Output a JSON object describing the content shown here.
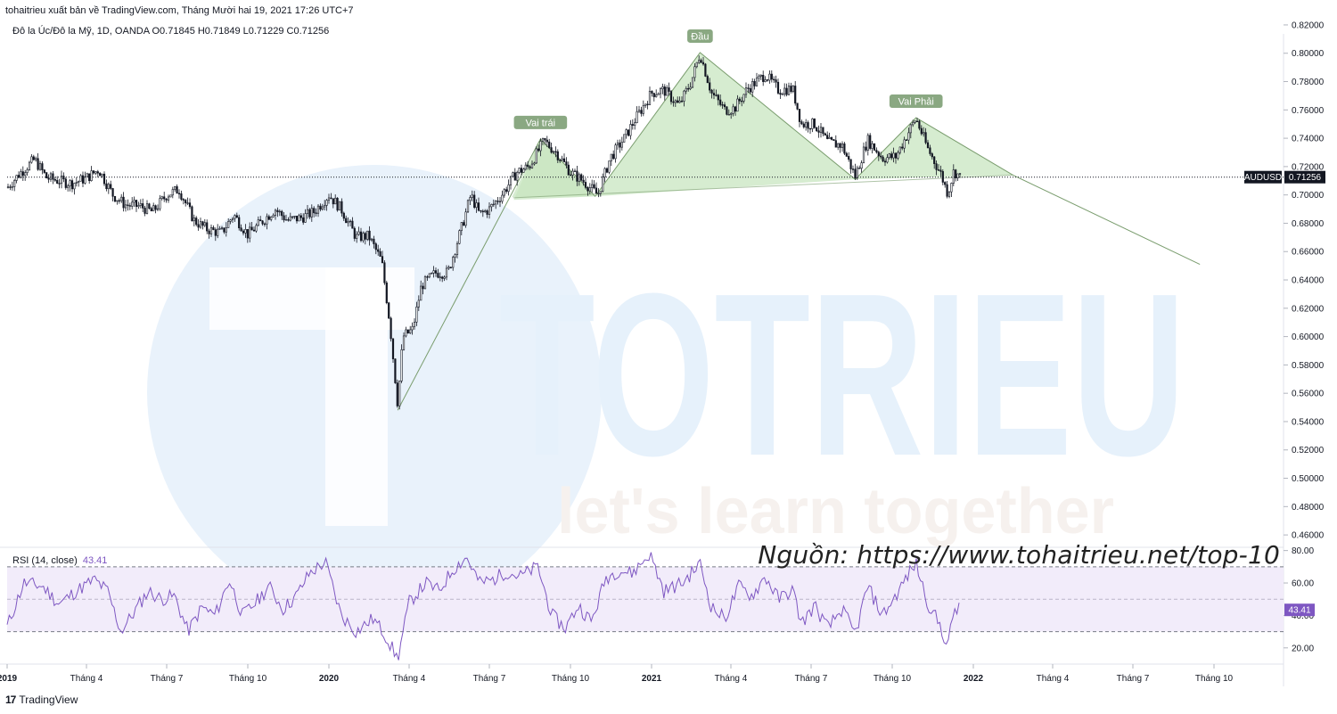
{
  "header": {
    "publisher_line": "tohaitrieu xuất bản về TradingView.com, Tháng Mười hai 19, 2021 17:26 UTC+7",
    "symbol_line": "Đô la Úc/Đô la Mỹ, 1D, OANDA  O0.71845  H0.71849  L0.71229  C0.71256"
  },
  "rsi": {
    "label": "RSI (14, close)",
    "value": "43.41"
  },
  "source_note": "Nguồn: https://www.tohaitrieu.net/top-10",
  "footer": {
    "brand": "TradingView",
    "logo_glyph": "17"
  },
  "watermark": {
    "big": "TOTRIEU",
    "tagline": "let's learn together"
  },
  "colors": {
    "candle": "#131722",
    "pattern_fill": "#c8e6c0",
    "pattern_line": "#7a9d6e",
    "label_bg": "#8aa882",
    "rsi_line": "#7e57c2",
    "rsi_band": "#f2ecfa",
    "price_tag": "#131722",
    "rsi_tag": "#7e57c2",
    "watermark": "#e6f1fb"
  },
  "chart_data": [
    {
      "type": "candlestick",
      "title": "Đô la Úc/Đô la Mỹ, 1D, OANDA",
      "ylim": [
        0.45,
        0.825
      ],
      "y_ticks": [
        "0.82000",
        "0.80000",
        "0.78000",
        "0.76000",
        "0.74000",
        "0.72000",
        "0.70000",
        "0.68000",
        "0.66000",
        "0.64000",
        "0.62000",
        "0.60000",
        "0.58000",
        "0.56000",
        "0.54000",
        "0.52000",
        "0.50000",
        "0.48000",
        "0.46000"
      ],
      "x_ticks": [
        {
          "label": "2019",
          "bold": true
        },
        {
          "label": "Tháng 4",
          "bold": false
        },
        {
          "label": "Tháng 7",
          "bold": false
        },
        {
          "label": "Tháng 10",
          "bold": false
        },
        {
          "label": "2020",
          "bold": true
        },
        {
          "label": "Tháng 4",
          "bold": false
        },
        {
          "label": "Tháng 7",
          "bold": false
        },
        {
          "label": "Tháng 10",
          "bold": false
        },
        {
          "label": "2021",
          "bold": true
        },
        {
          "label": "Tháng 4",
          "bold": false
        },
        {
          "label": "Tháng 7",
          "bold": false
        },
        {
          "label": "Tháng 10",
          "bold": false
        },
        {
          "label": "2022",
          "bold": true
        },
        {
          "label": "Tháng 4",
          "bold": false
        },
        {
          "label": "Tháng 7",
          "bold": false
        },
        {
          "label": "Tháng 10",
          "bold": false
        }
      ],
      "price_path": [
        [
          "2019-01-01",
          0.705
        ],
        [
          "2019-01-15",
          0.715
        ],
        [
          "2019-02-01",
          0.725
        ],
        [
          "2019-02-15",
          0.712
        ],
        [
          "2019-03-01",
          0.71
        ],
        [
          "2019-03-15",
          0.708
        ],
        [
          "2019-04-01",
          0.712
        ],
        [
          "2019-04-15",
          0.718
        ],
        [
          "2019-05-01",
          0.7
        ],
        [
          "2019-05-15",
          0.693
        ],
        [
          "2019-06-01",
          0.692
        ],
        [
          "2019-06-15",
          0.688
        ],
        [
          "2019-07-01",
          0.7
        ],
        [
          "2019-07-15",
          0.704
        ],
        [
          "2019-08-01",
          0.682
        ],
        [
          "2019-08-15",
          0.676
        ],
        [
          "2019-09-01",
          0.673
        ],
        [
          "2019-09-15",
          0.686
        ],
        [
          "2019-10-01",
          0.672
        ],
        [
          "2019-10-15",
          0.68
        ],
        [
          "2019-11-01",
          0.69
        ],
        [
          "2019-11-15",
          0.682
        ],
        [
          "2019-12-01",
          0.684
        ],
        [
          "2019-12-15",
          0.688
        ],
        [
          "2020-01-01",
          0.7
        ],
        [
          "2020-01-15",
          0.69
        ],
        [
          "2020-02-01",
          0.67
        ],
        [
          "2020-02-15",
          0.671
        ],
        [
          "2020-03-01",
          0.653
        ],
        [
          "2020-03-10",
          0.61
        ],
        [
          "2020-03-19",
          0.552
        ],
        [
          "2020-03-25",
          0.6
        ],
        [
          "2020-04-05",
          0.605
        ],
        [
          "2020-04-15",
          0.636
        ],
        [
          "2020-05-01",
          0.645
        ],
        [
          "2020-05-15",
          0.645
        ],
        [
          "2020-06-01",
          0.68
        ],
        [
          "2020-06-10",
          0.7
        ],
        [
          "2020-06-20",
          0.686
        ],
        [
          "2020-07-01",
          0.69
        ],
        [
          "2020-07-15",
          0.7
        ],
        [
          "2020-08-01",
          0.716
        ],
        [
          "2020-08-15",
          0.72
        ],
        [
          "2020-09-01",
          0.738
        ],
        [
          "2020-09-15",
          0.73
        ],
        [
          "2020-10-01",
          0.716
        ],
        [
          "2020-10-15",
          0.71
        ],
        [
          "2020-11-01",
          0.7
        ],
        [
          "2020-11-15",
          0.726
        ],
        [
          "2020-12-01",
          0.74
        ],
        [
          "2020-12-15",
          0.755
        ],
        [
          "2021-01-01",
          0.772
        ],
        [
          "2021-01-15",
          0.774
        ],
        [
          "2021-02-01",
          0.763
        ],
        [
          "2021-02-15",
          0.78
        ],
        [
          "2021-02-25",
          0.8
        ],
        [
          "2021-03-10",
          0.772
        ],
        [
          "2021-03-25",
          0.76
        ],
        [
          "2021-04-05",
          0.761
        ],
        [
          "2021-04-20",
          0.775
        ],
        [
          "2021-05-10",
          0.785
        ],
        [
          "2021-05-25",
          0.774
        ],
        [
          "2021-06-10",
          0.775
        ],
        [
          "2021-06-20",
          0.75
        ],
        [
          "2021-07-05",
          0.75
        ],
        [
          "2021-07-20",
          0.737
        ],
        [
          "2021-08-05",
          0.735
        ],
        [
          "2021-08-20",
          0.713
        ],
        [
          "2021-09-03",
          0.739
        ],
        [
          "2021-09-20",
          0.726
        ],
        [
          "2021-10-05",
          0.727
        ],
        [
          "2021-10-20",
          0.745
        ],
        [
          "2021-10-28",
          0.754
        ],
        [
          "2021-11-10",
          0.733
        ],
        [
          "2021-11-25",
          0.715
        ],
        [
          "2021-12-03",
          0.701
        ],
        [
          "2021-12-10",
          0.717
        ],
        [
          "2021-12-17",
          0.7126
        ]
      ],
      "last_price": {
        "symbol": "AUDUSD",
        "value": "0.71256",
        "y": 0.71256
      },
      "pattern": {
        "name": "Head and Shoulders",
        "labels": [
          {
            "text": "Vai trái",
            "date": "2020-08-28",
            "y": 0.7395
          },
          {
            "text": "Đầu",
            "date": "2021-02-25",
            "y": 0.8005
          },
          {
            "text": "Vai Phải",
            "date": "2021-10-28",
            "y": 0.7545
          }
        ],
        "points": [
          {
            "date": "2020-03-19",
            "y": 0.548
          },
          {
            "date": "2020-08-28",
            "y": 0.7395
          },
          {
            "date": "2020-10-29",
            "y": 0.699
          },
          {
            "date": "2021-02-25",
            "y": 0.8005
          },
          {
            "date": "2021-08-20",
            "y": 0.711
          },
          {
            "date": "2021-10-28",
            "y": 0.7545
          },
          {
            "date": "2022-02-15",
            "y": 0.714
          },
          {
            "date": "2022-09-15",
            "y": 0.651
          }
        ]
      }
    },
    {
      "type": "line",
      "title": "RSI (14, close)",
      "ylim": [
        10,
        82
      ],
      "y_ticks": [
        "80.00",
        "60.00",
        "40.00",
        "20.00"
      ],
      "bands": [
        30,
        50,
        70
      ],
      "last_value": "43.41",
      "series": [
        {
          "values": [
            [
              "2019-01-01",
              33
            ],
            [
              "2019-01-20",
              60
            ],
            [
              "2019-02-10",
              58
            ],
            [
              "2019-03-01",
              47
            ],
            [
              "2019-03-20",
              55
            ],
            [
              "2019-04-10",
              62
            ],
            [
              "2019-04-25",
              55
            ],
            [
              "2019-05-10",
              30
            ],
            [
              "2019-05-25",
              42
            ],
            [
              "2019-06-10",
              55
            ],
            [
              "2019-06-25",
              50
            ],
            [
              "2019-07-10",
              52
            ],
            [
              "2019-07-25",
              30
            ],
            [
              "2019-08-10",
              45
            ],
            [
              "2019-08-25",
              40
            ],
            [
              "2019-09-10",
              62
            ],
            [
              "2019-09-25",
              40
            ],
            [
              "2019-10-10",
              48
            ],
            [
              "2019-10-25",
              58
            ],
            [
              "2019-11-10",
              44
            ],
            [
              "2019-11-25",
              52
            ],
            [
              "2019-12-10",
              66
            ],
            [
              "2019-12-28",
              73
            ],
            [
              "2020-01-15",
              40
            ],
            [
              "2020-02-01",
              30
            ],
            [
              "2020-02-20",
              38
            ],
            [
              "2020-03-05",
              28
            ],
            [
              "2020-03-19",
              13
            ],
            [
              "2020-04-01",
              48
            ],
            [
              "2020-04-20",
              60
            ],
            [
              "2020-05-05",
              55
            ],
            [
              "2020-05-20",
              68
            ],
            [
              "2020-06-05",
              76
            ],
            [
              "2020-06-20",
              60
            ],
            [
              "2020-07-05",
              62
            ],
            [
              "2020-07-20",
              67
            ],
            [
              "2020-08-05",
              64
            ],
            [
              "2020-08-25",
              70
            ],
            [
              "2020-09-10",
              40
            ],
            [
              "2020-09-25",
              32
            ],
            [
              "2020-10-10",
              46
            ],
            [
              "2020-10-25",
              36
            ],
            [
              "2020-11-10",
              63
            ],
            [
              "2020-11-25",
              68
            ],
            [
              "2020-12-10",
              66
            ],
            [
              "2020-12-30",
              78
            ],
            [
              "2021-01-15",
              55
            ],
            [
              "2021-02-05",
              60
            ],
            [
              "2021-02-25",
              72
            ],
            [
              "2021-03-10",
              45
            ],
            [
              "2021-03-25",
              38
            ],
            [
              "2021-04-10",
              58
            ],
            [
              "2021-04-25",
              52
            ],
            [
              "2021-05-10",
              64
            ],
            [
              "2021-05-25",
              50
            ],
            [
              "2021-06-10",
              56
            ],
            [
              "2021-06-20",
              35
            ],
            [
              "2021-07-05",
              46
            ],
            [
              "2021-07-20",
              32
            ],
            [
              "2021-08-05",
              44
            ],
            [
              "2021-08-20",
              28
            ],
            [
              "2021-09-03",
              58
            ],
            [
              "2021-09-20",
              40
            ],
            [
              "2021-10-05",
              52
            ],
            [
              "2021-10-20",
              66
            ],
            [
              "2021-10-28",
              72
            ],
            [
              "2021-11-10",
              48
            ],
            [
              "2021-11-25",
              33
            ],
            [
              "2021-12-03",
              20
            ],
            [
              "2021-12-10",
              44
            ],
            [
              "2021-12-17",
              43.41
            ]
          ]
        }
      ]
    }
  ]
}
